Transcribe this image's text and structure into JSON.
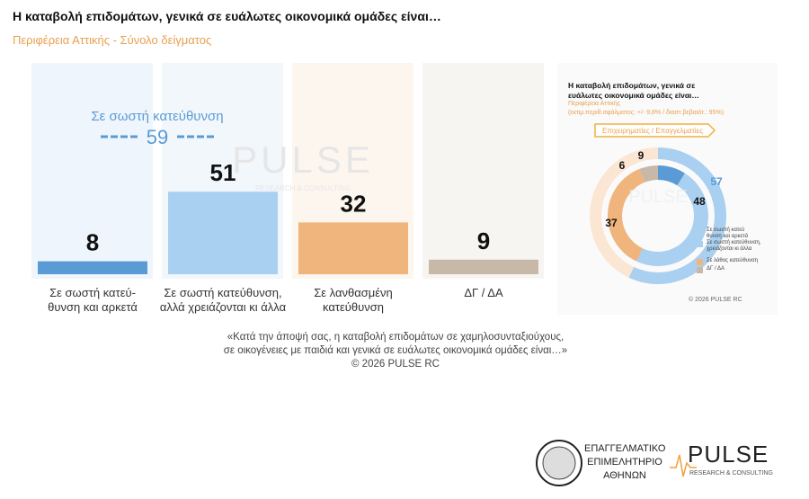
{
  "header": {
    "title": "Η καταβολή επιδομάτων, γενικά σε ευάλωτες οικονομικά ομάδες είναι…",
    "subtitle": "Περιφέρεια Αττικής - Σύνολο δείγματος"
  },
  "chart_data": [
    {
      "type": "bar",
      "categories": [
        "Σε σωστή κατεύ-\nθυνση και αρκετά",
        "Σε σωστή κατεύθυνση,\nαλλά χρειάζονται κι άλλα",
        "Σε λανθασμένη\nκατεύθυνση",
        "ΔΓ / ΔΑ"
      ],
      "values": [
        8,
        51,
        32,
        9
      ],
      "colors": [
        "#5b9bd5",
        "#a9d0f0",
        "#f0b47d",
        "#c8b8a8"
      ],
      "ylim": [
        0,
        100
      ],
      "group": {
        "label": "Σε σωστή κατεύθυνση",
        "value": 59,
        "color": "#5b9bd5"
      }
    },
    {
      "type": "donut",
      "title": "Η καταβολή επιδομάτων, γενικά σε\nευάλωτες οικονομικά ομάδες είναι…",
      "subtitle": "Περιφέρεια Αττικής",
      "note": "(εκτιμ.περιθ.σφάλματος: +/- 9,8% / διαστ.βεβαιότ.: 95%)",
      "tag": "Επιχειρηματίες / Επαγγελματίες",
      "series": [
        {
          "name": "Σε σωστή κατεύ\nθυνση και αρκετά",
          "color": "#5b9bd5",
          "values": [
            9
          ]
        },
        {
          "name": "Σε σωστή κατεύθυνση,\nχρειάζονται κι άλλα",
          "color": "#a9d0f0",
          "values": [
            48
          ]
        },
        {
          "name": "Σε λάθος κατεύθυνση",
          "color": "#f0b47d",
          "values": [
            37
          ]
        },
        {
          "name": "ΔΓ / ΔΑ",
          "color": "#c8b8a8",
          "values": [
            6
          ]
        }
      ],
      "outer": {
        "value": 57,
        "color": "#a9d0f0"
      },
      "copyright": "© 2026 PULSE RC"
    }
  ],
  "footnote": [
    "«Κατά την άποψή σας, η καταβολή επιδομάτων σε χαμηλοσυνταξιούχους,",
    "σε οικογένειες με παιδιά και γενικά σε ευάλωτες οικονομικά ομάδες είναι…»",
    "©  2026  PULSE RC"
  ],
  "watermark": {
    "name": "PULSE",
    "tagline": "RESEARCH & CONSULTING"
  },
  "footer": {
    "chamber": [
      "ΕΠΑΓΓΕΛΜΑΤΙΚΟ",
      "ΕΠΙΜΕΛΗΤΗΡΙΟ",
      "ΑΘΗΝΩΝ"
    ],
    "brand": "PULSE",
    "tagline": "RESEARCH & CONSULTING"
  }
}
